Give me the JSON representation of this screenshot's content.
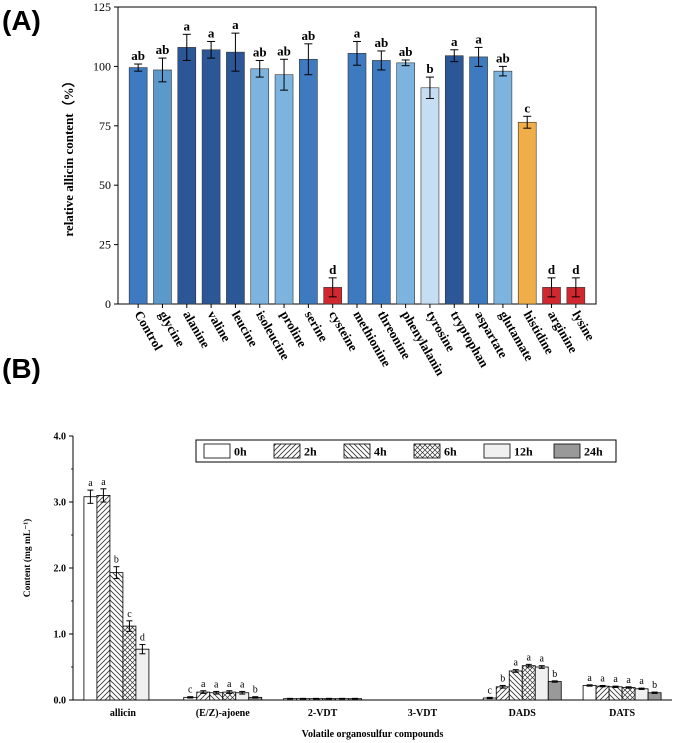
{
  "chart_data": [
    {
      "type": "bar",
      "panel_label": "(A)",
      "title": "",
      "xlabel": "",
      "ylabel": "relative allicin content（%）",
      "ylim": [
        0,
        125
      ],
      "yticks": [
        "0",
        "25",
        "50",
        "75",
        "100",
        "125"
      ],
      "grid": false,
      "categories": [
        "Control",
        "glycine",
        "alanine",
        "valine",
        "leucine",
        "isoleucine",
        "proline",
        "serine",
        "cysteine",
        "methionine",
        "threonine",
        "phenylalanin",
        "tyrosine",
        "tryptophan",
        "aspartate",
        "glutamate",
        "histidine",
        "arginine",
        "lysine"
      ],
      "values": [
        99.5,
        98.5,
        108,
        107,
        106,
        99,
        96.5,
        103,
        7,
        105.5,
        102.5,
        101.5,
        91,
        104.5,
        104,
        98,
        76.5,
        7,
        7
      ],
      "errors": [
        1.5,
        5,
        5.5,
        3.5,
        8,
        3.5,
        6.5,
        6.5,
        4,
        5,
        4,
        1.2,
        4.5,
        2.5,
        4,
        2,
        2.5,
        4,
        4
      ],
      "letters": [
        "ab",
        "ab",
        "a",
        "a",
        "a",
        "ab",
        "ab",
        "ab",
        "d",
        "a",
        "ab",
        "ab",
        "b",
        "a",
        "a",
        "ab",
        "c",
        "d",
        "d"
      ],
      "colors": [
        "#3d7ac0",
        "#5b99cb",
        "#2b5797",
        "#2b5797",
        "#2b5797",
        "#7db4df",
        "#7db4df",
        "#3d7ac0",
        "#d0282e",
        "#3d7ac0",
        "#3d7ac0",
        "#7db4df",
        "#c6def3",
        "#2b5797",
        "#3d7ac0",
        "#7db4df",
        "#efae48",
        "#d0282e",
        "#d0282e"
      ]
    },
    {
      "type": "bar",
      "panel_label": "(B)",
      "title": "",
      "xlabel": "Volatile organosulfur compounds",
      "ylabel": "Content (mg mL⁻¹)",
      "ylim": [
        0,
        4.0
      ],
      "yticks": [
        "0.0",
        "1.0",
        "2.0",
        "3.0",
        "4.0"
      ],
      "grid": false,
      "legend_position": "top-center",
      "categories": [
        "allicin",
        "(E/Z)-ajoene",
        "2-VDT",
        "3-VDT",
        "DADS",
        "DATS"
      ],
      "series": [
        {
          "name": "0h",
          "pattern": "none",
          "values": [
            3.08,
            0.04,
            0.02,
            0.0,
            0.03,
            0.22
          ],
          "errors": [
            0.1,
            0.01,
            0.005,
            0.0,
            0.01,
            0.01
          ],
          "letters": [
            "a",
            "c",
            "",
            "",
            "c",
            "a"
          ]
        },
        {
          "name": "2h",
          "pattern": "diag-up",
          "values": [
            3.1,
            0.12,
            0.02,
            0.0,
            0.2,
            0.21
          ],
          "errors": [
            0.1,
            0.02,
            0.005,
            0.0,
            0.02,
            0.01
          ],
          "letters": [
            "a",
            "a",
            "",
            "",
            "b",
            "a"
          ]
        },
        {
          "name": "4h",
          "pattern": "diag-down",
          "values": [
            1.93,
            0.11,
            0.02,
            0.0,
            0.44,
            0.2
          ],
          "errors": [
            0.09,
            0.02,
            0.005,
            0.0,
            0.02,
            0.01
          ],
          "letters": [
            "b",
            "a",
            "",
            "",
            "a",
            "a"
          ]
        },
        {
          "name": "6h",
          "pattern": "crosshatch",
          "values": [
            1.12,
            0.12,
            0.02,
            0.0,
            0.52,
            0.19
          ],
          "errors": [
            0.08,
            0.02,
            0.005,
            0.0,
            0.02,
            0.01
          ],
          "letters": [
            "c",
            "a",
            "",
            "",
            "a",
            "a"
          ]
        },
        {
          "name": "12h",
          "pattern": "light",
          "values": [
            0.77,
            0.11,
            0.02,
            0.0,
            0.5,
            0.17
          ],
          "errors": [
            0.07,
            0.02,
            0.005,
            0.0,
            0.02,
            0.01
          ],
          "letters": [
            "d",
            "a",
            "",
            "",
            "a",
            "a"
          ]
        },
        {
          "name": "24h",
          "pattern": "gray",
          "values": [
            0.0,
            0.04,
            0.02,
            0.0,
            0.28,
            0.11
          ],
          "errors": [
            0.0,
            0.01,
            0.005,
            0.0,
            0.01,
            0.01
          ],
          "letters": [
            "",
            "b",
            "",
            "",
            "b",
            "b"
          ]
        }
      ]
    }
  ]
}
